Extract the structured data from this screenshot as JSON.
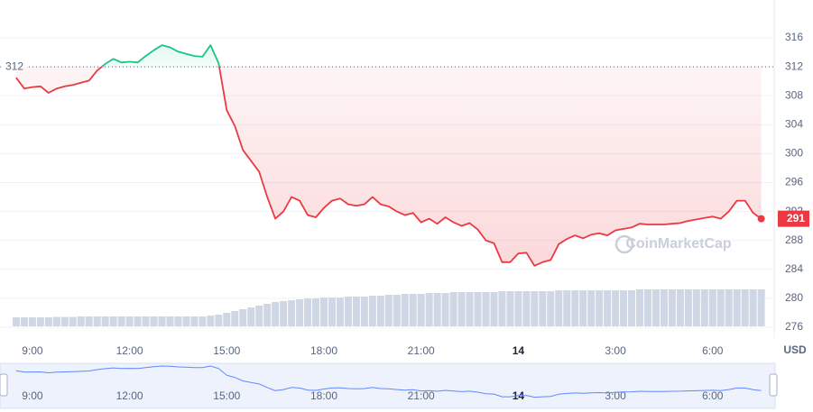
{
  "chart_data": {
    "type": "line",
    "currency": "USD",
    "watermark": "CoinMarketCap",
    "baseline": 312,
    "last_price": 291,
    "up_color": "#16c784",
    "down_color": "#ea3943",
    "grid": true,
    "xlim": [
      8,
      31.9
    ],
    "ylim": [
      274.5,
      318.5
    ],
    "xticks": [
      {
        "value": 9,
        "label": "9:00"
      },
      {
        "value": 12,
        "label": "12:00"
      },
      {
        "value": 15,
        "label": "15:00"
      },
      {
        "value": 18,
        "label": "18:00"
      },
      {
        "value": 21,
        "label": "21:00"
      },
      {
        "value": 24,
        "label": "14"
      },
      {
        "value": 27,
        "label": "3:00"
      },
      {
        "value": 30,
        "label": "6:00"
      }
    ],
    "yticks": [
      276,
      280,
      284,
      288,
      292,
      296,
      300,
      304,
      308,
      312,
      316
    ],
    "x": [
      8.5,
      8.75,
      9,
      9.25,
      9.5,
      9.75,
      10,
      10.25,
      10.5,
      10.75,
      11,
      11.25,
      11.5,
      11.75,
      12,
      12.25,
      12.5,
      12.75,
      13,
      13.25,
      13.5,
      13.75,
      14,
      14.25,
      14.5,
      14.75,
      15,
      15.25,
      15.5,
      15.75,
      16,
      16.25,
      16.5,
      16.75,
      17,
      17.25,
      17.5,
      17.75,
      18,
      18.25,
      18.5,
      18.75,
      19,
      19.25,
      19.5,
      19.75,
      20,
      20.25,
      20.5,
      20.75,
      21,
      21.25,
      21.5,
      21.75,
      22,
      22.25,
      22.5,
      22.75,
      23,
      23.25,
      23.5,
      23.75,
      24,
      24.25,
      24.5,
      24.75,
      25,
      25.25,
      25.5,
      25.75,
      26,
      26.25,
      26.5,
      26.75,
      27,
      27.25,
      27.5,
      27.75,
      28,
      28.25,
      28.5,
      28.75,
      29,
      29.25,
      29.5,
      29.75,
      30,
      30.25,
      30.5,
      30.75,
      31,
      31.25,
      31.5
    ],
    "series": [
      {
        "name": "Price",
        "values": [
          310.5,
          309.0,
          309.2,
          309.3,
          308.4,
          309.0,
          309.3,
          309.5,
          309.8,
          310.1,
          311.5,
          312.4,
          313.1,
          312.6,
          312.7,
          312.6,
          313.5,
          314.3,
          315.0,
          314.7,
          314.1,
          313.8,
          313.5,
          313.4,
          315.0,
          312.5,
          306.0,
          303.8,
          300.5,
          299.0,
          297.5,
          294.0,
          291.0,
          292.0,
          294.0,
          293.5,
          291.5,
          291.2,
          292.5,
          293.5,
          293.8,
          293.0,
          292.8,
          293.0,
          294.0,
          293.0,
          292.7,
          292.0,
          291.5,
          291.8,
          290.5,
          291.0,
          290.3,
          291.2,
          290.5,
          290.0,
          290.4,
          289.5,
          288.0,
          287.6,
          285.0,
          285.0,
          286.2,
          286.3,
          284.5,
          285.0,
          285.3,
          287.5,
          288.2,
          288.7,
          288.3,
          288.8,
          289.0,
          288.7,
          289.4,
          289.6,
          289.8,
          290.3,
          290.2,
          290.2,
          290.2,
          290.3,
          290.4,
          290.7,
          290.9,
          291.1,
          291.3,
          291.0,
          292.0,
          293.5,
          293.5,
          291.8,
          291.0
        ]
      },
      {
        "name": "Volume",
        "color": "#cfd6e4",
        "values": [
          10,
          10,
          10,
          10,
          10,
          10.5,
          10.5,
          10.5,
          11,
          11,
          11,
          11,
          11,
          11,
          11,
          11,
          11,
          11,
          11,
          11,
          11,
          11,
          11,
          11,
          12,
          13,
          15,
          17,
          19,
          21,
          23,
          25,
          27,
          28,
          29,
          30,
          31,
          31,
          32,
          32,
          32,
          33,
          33,
          33,
          34,
          34,
          35,
          35,
          36,
          36,
          36,
          37,
          37,
          37,
          38,
          38,
          38,
          38,
          38,
          38,
          39,
          39,
          39,
          39,
          39,
          39,
          39,
          40,
          40,
          40,
          40,
          40,
          40,
          40,
          40,
          40,
          40,
          41,
          41,
          41,
          41,
          41,
          41,
          41,
          41,
          41,
          41,
          41,
          41,
          41,
          41,
          41,
          41
        ]
      }
    ]
  }
}
